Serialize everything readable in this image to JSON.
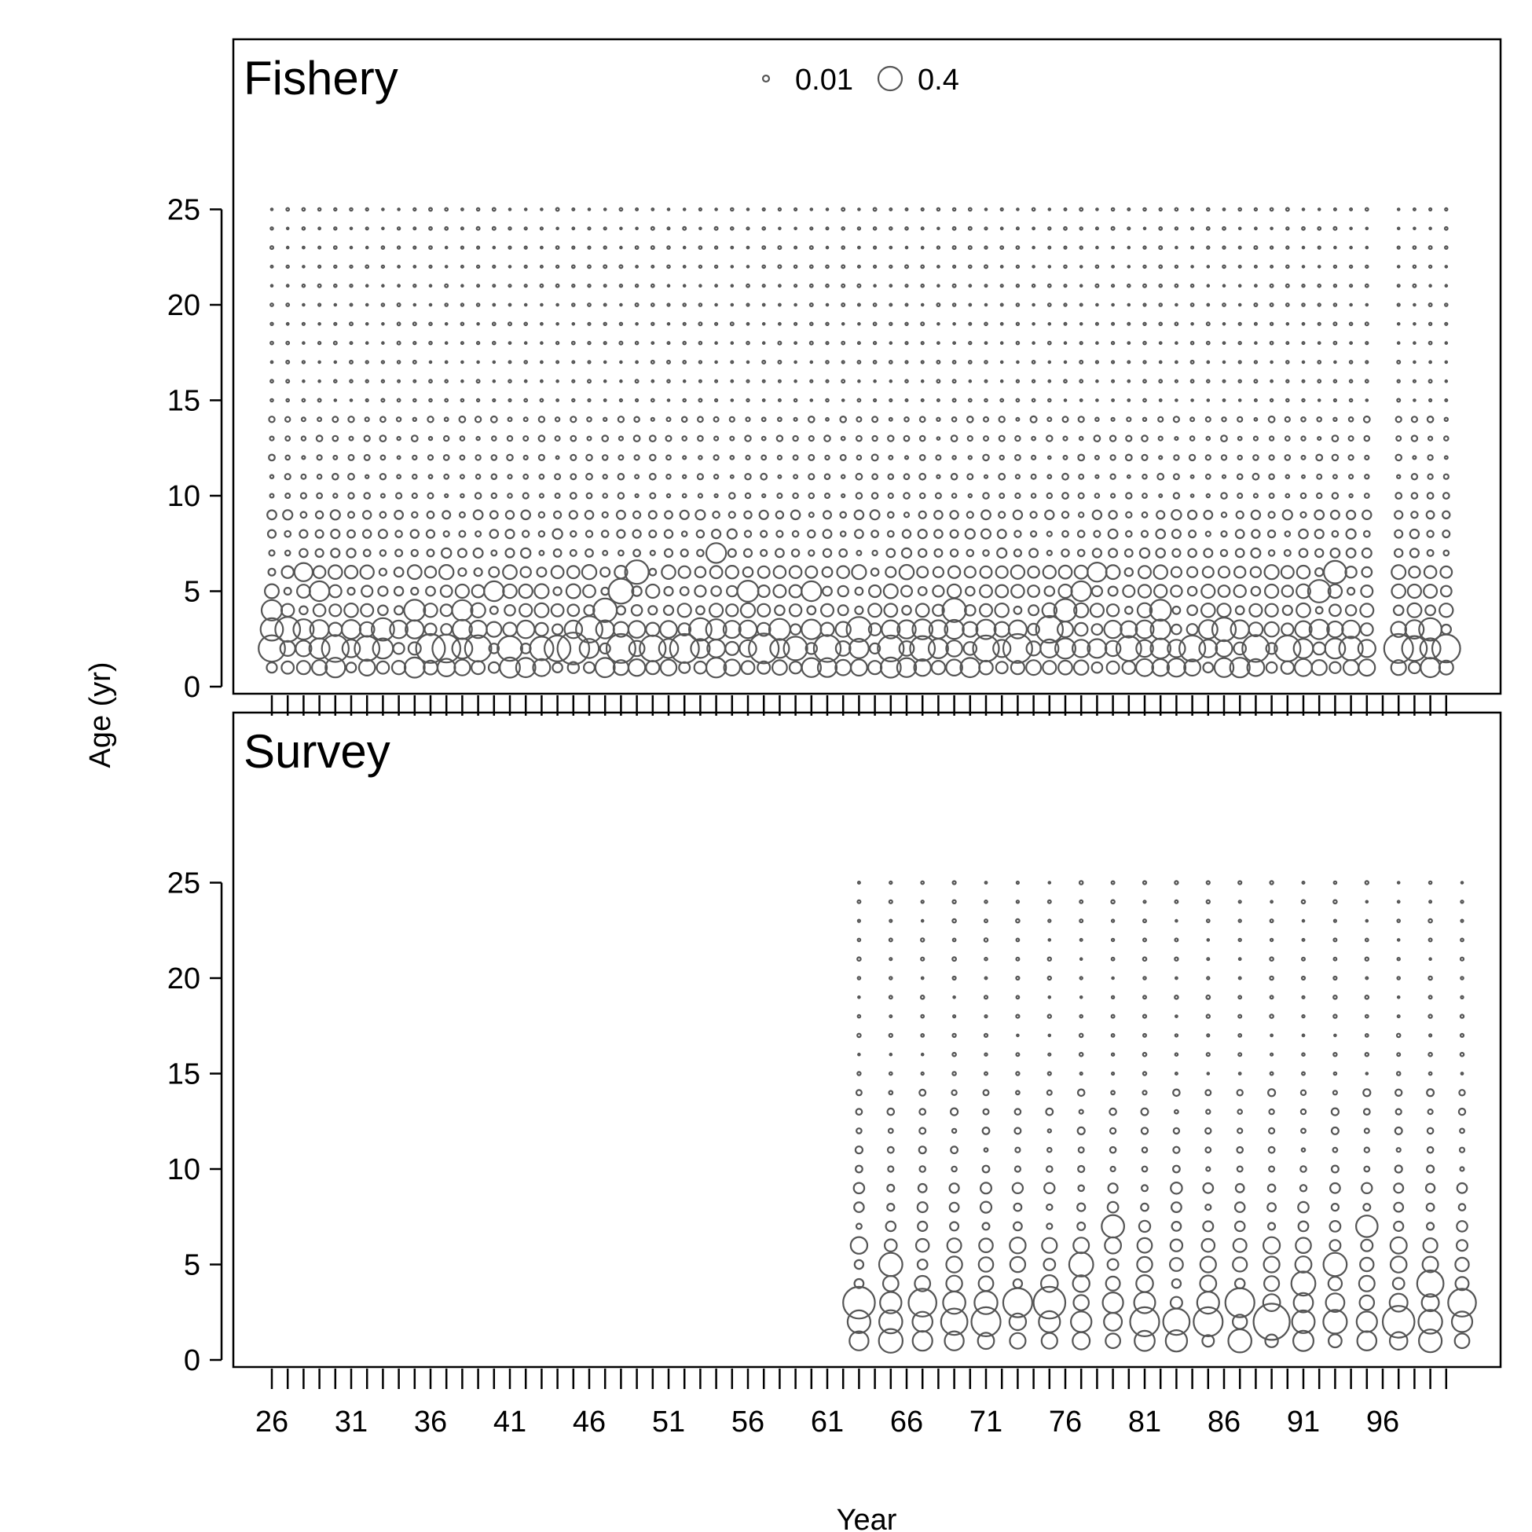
{
  "chart_data": {
    "type": "scatter",
    "subtype": "bubble",
    "xlabel": "Year",
    "ylabel": "Age (yr)",
    "x_tick_labels": [
      "26",
      "31",
      "36",
      "41",
      "46",
      "51",
      "56",
      "61",
      "66",
      "71",
      "76",
      "81",
      "86",
      "91",
      "96"
    ],
    "x_ticks": [
      26,
      31,
      36,
      41,
      46,
      51,
      56,
      61,
      66,
      71,
      76,
      81,
      86,
      91,
      96
    ],
    "xlim": [
      23.5,
      103.5
    ],
    "x_minor_ticks_from": 26,
    "x_minor_ticks_to": 100,
    "ylim": [
      0,
      33
    ],
    "y_ticks": [
      0,
      5,
      10,
      15,
      20,
      25
    ],
    "y_tick_labels": [
      "0",
      "5",
      "10",
      "15",
      "20",
      "25"
    ],
    "ages": [
      1,
      25
    ],
    "grid": false,
    "color": "#555555",
    "legend": {
      "placement": "top-center",
      "entries": [
        {
          "label": "0.01",
          "value": 0.01
        },
        {
          "label": "0.4",
          "value": 0.4
        }
      ]
    },
    "panels": [
      {
        "title": "Fishery",
        "years": [
          26,
          27,
          28,
          29,
          30,
          31,
          32,
          33,
          34,
          35,
          36,
          37,
          38,
          39,
          40,
          41,
          42,
          43,
          44,
          45,
          46,
          47,
          48,
          49,
          50,
          51,
          52,
          53,
          54,
          55,
          56,
          57,
          58,
          59,
          60,
          61,
          62,
          63,
          64,
          65,
          66,
          67,
          68,
          69,
          70,
          71,
          72,
          73,
          74,
          75,
          76,
          77,
          78,
          79,
          80,
          81,
          82,
          83,
          84,
          85,
          86,
          87,
          88,
          89,
          90,
          91,
          92,
          93,
          94,
          95,
          97,
          98,
          99,
          100
        ],
        "large_proportions": [
          {
            "year": 26,
            "age": 2,
            "value": 0.25
          },
          {
            "year": 26,
            "age": 3,
            "value": 0.18
          },
          {
            "year": 26,
            "age": 4,
            "value": 0.15
          },
          {
            "year": 27,
            "age": 3,
            "value": 0.22
          },
          {
            "year": 28,
            "age": 6,
            "value": 0.12
          },
          {
            "year": 29,
            "age": 5,
            "value": 0.14
          },
          {
            "year": 30,
            "age": 2,
            "value": 0.26
          },
          {
            "year": 32,
            "age": 2,
            "value": 0.22
          },
          {
            "year": 33,
            "age": 3,
            "value": 0.18
          },
          {
            "year": 35,
            "age": 4,
            "value": 0.16
          },
          {
            "year": 36,
            "age": 2,
            "value": 0.3
          },
          {
            "year": 37,
            "age": 2,
            "value": 0.28
          },
          {
            "year": 38,
            "age": 4,
            "value": 0.15
          },
          {
            "year": 39,
            "age": 2,
            "value": 0.25
          },
          {
            "year": 40,
            "age": 5,
            "value": 0.14
          },
          {
            "year": 41,
            "age": 2,
            "value": 0.22
          },
          {
            "year": 43,
            "age": 2,
            "value": 0.2
          },
          {
            "year": 44,
            "age": 2,
            "value": 0.24
          },
          {
            "year": 45,
            "age": 2,
            "value": 0.36
          },
          {
            "year": 46,
            "age": 3,
            "value": 0.25
          },
          {
            "year": 47,
            "age": 4,
            "value": 0.2
          },
          {
            "year": 48,
            "age": 5,
            "value": 0.22
          },
          {
            "year": 48,
            "age": 2,
            "value": 0.3
          },
          {
            "year": 49,
            "age": 6,
            "value": 0.2
          },
          {
            "year": 50,
            "age": 2,
            "value": 0.24
          },
          {
            "year": 52,
            "age": 2,
            "value": 0.3
          },
          {
            "year": 53,
            "age": 3,
            "value": 0.18
          },
          {
            "year": 54,
            "age": 7,
            "value": 0.14
          },
          {
            "year": 56,
            "age": 5,
            "value": 0.16
          },
          {
            "year": 57,
            "age": 2,
            "value": 0.32
          },
          {
            "year": 58,
            "age": 3,
            "value": 0.16
          },
          {
            "year": 59,
            "age": 2,
            "value": 0.2
          },
          {
            "year": 60,
            "age": 5,
            "value": 0.14
          },
          {
            "year": 61,
            "age": 2,
            "value": 0.26
          },
          {
            "year": 63,
            "age": 3,
            "value": 0.22
          },
          {
            "year": 65,
            "age": 2,
            "value": 0.24
          },
          {
            "year": 67,
            "age": 2,
            "value": 0.22
          },
          {
            "year": 69,
            "age": 4,
            "value": 0.2
          },
          {
            "year": 71,
            "age": 2,
            "value": 0.24
          },
          {
            "year": 73,
            "age": 2,
            "value": 0.3
          },
          {
            "year": 75,
            "age": 3,
            "value": 0.26
          },
          {
            "year": 76,
            "age": 4,
            "value": 0.18
          },
          {
            "year": 77,
            "age": 5,
            "value": 0.14
          },
          {
            "year": 78,
            "age": 6,
            "value": 0.13
          },
          {
            "year": 80,
            "age": 2,
            "value": 0.22
          },
          {
            "year": 82,
            "age": 4,
            "value": 0.16
          },
          {
            "year": 84,
            "age": 2,
            "value": 0.24
          },
          {
            "year": 86,
            "age": 3,
            "value": 0.2
          },
          {
            "year": 88,
            "age": 2,
            "value": 0.26
          },
          {
            "year": 90,
            "age": 2,
            "value": 0.24
          },
          {
            "year": 92,
            "age": 5,
            "value": 0.18
          },
          {
            "year": 93,
            "age": 6,
            "value": 0.18
          },
          {
            "year": 94,
            "age": 2,
            "value": 0.2
          },
          {
            "year": 97,
            "age": 2,
            "value": 0.3
          },
          {
            "year": 98,
            "age": 2,
            "value": 0.22
          },
          {
            "year": 99,
            "age": 3,
            "value": 0.18
          },
          {
            "year": 100,
            "age": 2,
            "value": 0.28
          }
        ]
      },
      {
        "title": "Survey",
        "years": [
          63,
          65,
          67,
          69,
          71,
          73,
          75,
          77,
          79,
          81,
          83,
          85,
          87,
          89,
          91,
          93,
          95,
          97,
          99,
          101
        ],
        "large_proportions": [
          {
            "year": 63,
            "age": 3,
            "value": 0.26
          },
          {
            "year": 65,
            "age": 5,
            "value": 0.14
          },
          {
            "year": 67,
            "age": 3,
            "value": 0.2
          },
          {
            "year": 69,
            "age": 2,
            "value": 0.18
          },
          {
            "year": 71,
            "age": 2,
            "value": 0.22
          },
          {
            "year": 73,
            "age": 3,
            "value": 0.22
          },
          {
            "year": 75,
            "age": 3,
            "value": 0.26
          },
          {
            "year": 77,
            "age": 5,
            "value": 0.15
          },
          {
            "year": 79,
            "age": 7,
            "value": 0.13
          },
          {
            "year": 81,
            "age": 2,
            "value": 0.22
          },
          {
            "year": 83,
            "age": 2,
            "value": 0.18
          },
          {
            "year": 85,
            "age": 2,
            "value": 0.22
          },
          {
            "year": 87,
            "age": 3,
            "value": 0.22
          },
          {
            "year": 89,
            "age": 2,
            "value": 0.34
          },
          {
            "year": 91,
            "age": 4,
            "value": 0.15
          },
          {
            "year": 93,
            "age": 5,
            "value": 0.14
          },
          {
            "year": 95,
            "age": 7,
            "value": 0.12
          },
          {
            "year": 97,
            "age": 2,
            "value": 0.26
          },
          {
            "year": 99,
            "age": 4,
            "value": 0.18
          },
          {
            "year": 101,
            "age": 3,
            "value": 0.2
          }
        ]
      }
    ]
  }
}
